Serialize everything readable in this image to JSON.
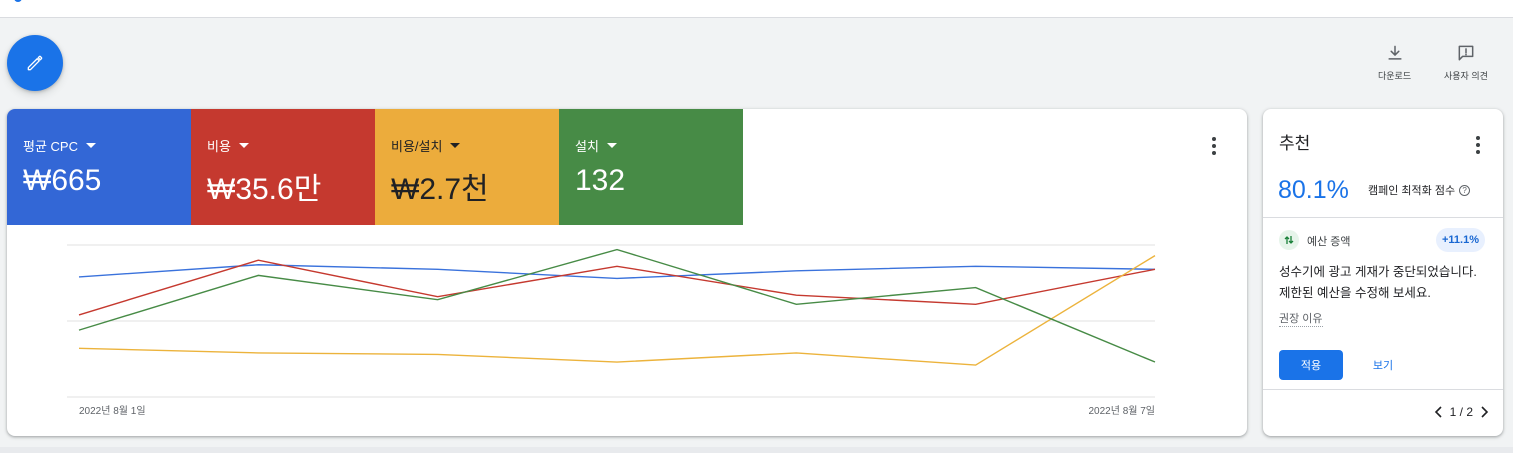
{
  "toolbar": {
    "edit_icon": "pencil-icon",
    "download_label": "다운로드",
    "download_icon": "download-icon",
    "feedback_label": "사용자 의견",
    "feedback_icon": "feedback-icon"
  },
  "metrics": [
    {
      "label": "평균 CPC",
      "value": "₩665",
      "color": "#3367d6"
    },
    {
      "label": "비용",
      "value": "₩35.6만",
      "color": "#c5392f"
    },
    {
      "label": "비용/설치",
      "value": "₩2.7천",
      "color": "#ecac3c"
    },
    {
      "label": "설치",
      "value": "132",
      "color": "#478b46"
    }
  ],
  "chart_data": {
    "type": "line",
    "x": [
      "2022-08-01",
      "2022-08-02",
      "2022-08-03",
      "2022-08-04",
      "2022-08-05",
      "2022-08-06",
      "2022-08-07"
    ],
    "tick_labels": [
      "2022년 8월 1일",
      "2022년 8월 7일"
    ],
    "grid": true,
    "normalized_per_series": true,
    "series": [
      {
        "name": "평균 CPC",
        "color": "#3a72dc",
        "values": [
          0.79,
          0.87,
          0.84,
          0.78,
          0.83,
          0.86,
          0.84
        ]
      },
      {
        "name": "비용",
        "color": "#c5392f",
        "values": [
          0.54,
          0.9,
          0.66,
          0.86,
          0.67,
          0.61,
          0.84
        ]
      },
      {
        "name": "비용/설치",
        "color": "#ecb33c",
        "values": [
          0.32,
          0.29,
          0.28,
          0.23,
          0.29,
          0.21,
          0.93
        ]
      },
      {
        "name": "설치",
        "color": "#478b46",
        "values": [
          0.44,
          0.8,
          0.64,
          0.97,
          0.61,
          0.72,
          0.23
        ]
      }
    ]
  },
  "recommendation": {
    "title": "추천",
    "score": "80.1%",
    "score_label": "캠페인 최적화 점수",
    "help_glyph": "?",
    "type_label": "예산 증액",
    "badge": "+11.1%",
    "description": "성수기에 광고 게재가 중단되었습니다. 제한된 예산을 수정해 보세요.",
    "reason_link": "권장 이유",
    "apply_label": "적용",
    "view_label": "보기",
    "pager": "1 / 2"
  }
}
